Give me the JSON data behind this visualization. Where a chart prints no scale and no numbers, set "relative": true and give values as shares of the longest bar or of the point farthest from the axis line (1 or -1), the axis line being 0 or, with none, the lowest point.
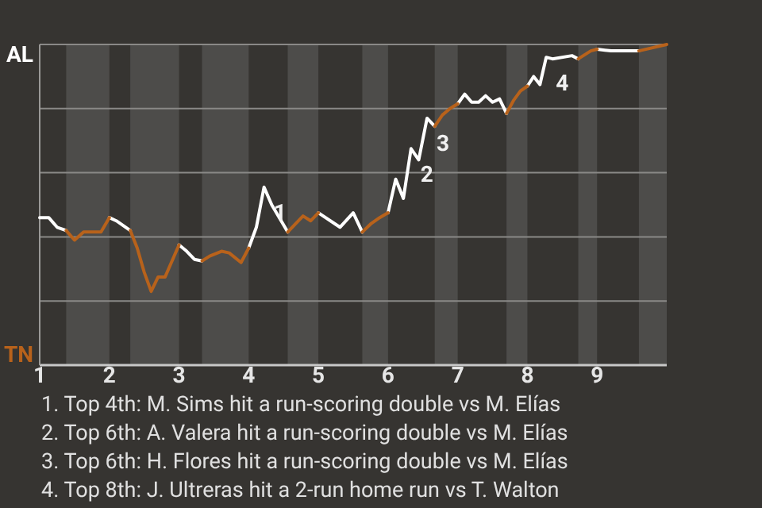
{
  "chart_data": {
    "type": "line",
    "relative": true,
    "x": [
      1,
      1.13,
      1.25,
      1.38,
      1.5,
      1.63,
      1.88,
      2,
      2.1,
      2.3,
      2.4,
      2.5,
      2.6,
      2.7,
      2.8,
      3,
      3.11,
      3.22,
      3.33,
      3.44,
      3.61,
      3.72,
      3.89,
      4,
      4.11,
      4.22,
      4.33,
      4.56,
      4.67,
      4.78,
      4.89,
      5,
      5.31,
      5.5,
      5.63,
      5.75,
      5.88,
      6,
      6.11,
      6.22,
      6.33,
      6.44,
      6.56,
      6.67,
      6.78,
      6.89,
      7,
      7.1,
      7.2,
      7.3,
      7.4,
      7.5,
      7.6,
      7.7,
      7.8,
      7.9,
      8,
      8.09,
      8.18,
      8.27,
      8.36,
      8.64,
      8.73,
      8.91,
      9,
      9.2,
      9.6,
      10
    ],
    "series": [
      {
        "name": "AL",
        "color": "#ffffff",
        "values": [
          0.46,
          0.46,
          0.43,
          0.42,
          null,
          null,
          null,
          0.46,
          0.45,
          0.42,
          null,
          null,
          null,
          null,
          null,
          0.375,
          0.355,
          0.33,
          0.325,
          null,
          null,
          null,
          null,
          0.365,
          0.43,
          0.555,
          0.5,
          0.415,
          null,
          null,
          null,
          0.475,
          0.43,
          0.475,
          0.415,
          null,
          null,
          0.475,
          0.58,
          0.52,
          0.675,
          0.64,
          0.77,
          0.745,
          null,
          null,
          0.815,
          0.845,
          0.82,
          0.82,
          0.84,
          0.82,
          0.83,
          0.785,
          null,
          null,
          0.87,
          0.9,
          0.875,
          0.96,
          0.955,
          0.965,
          0.955,
          null,
          0.985,
          0.98,
          0.98,
          null
        ]
      },
      {
        "name": "TN",
        "color": "#b8621b",
        "values": [
          null,
          null,
          null,
          0.42,
          0.39,
          0.415,
          0.415,
          0.46,
          null,
          0.42,
          0.365,
          0.29,
          0.23,
          0.275,
          0.275,
          0.375,
          null,
          null,
          0.325,
          0.34,
          0.355,
          0.35,
          0.32,
          0.365,
          null,
          null,
          null,
          0.415,
          0.44,
          0.465,
          0.45,
          0.475,
          null,
          null,
          0.415,
          0.44,
          0.46,
          0.475,
          null,
          null,
          null,
          null,
          null,
          0.745,
          0.78,
          0.8,
          0.815,
          null,
          null,
          null,
          null,
          null,
          null,
          0.785,
          0.825,
          0.855,
          0.87,
          null,
          null,
          null,
          null,
          null,
          0.955,
          0.98,
          0.985,
          null,
          0.98,
          1
        ]
      }
    ],
    "xlim": [
      1,
      10
    ],
    "xticks": [
      1,
      2,
      3,
      4,
      5,
      6,
      7,
      8,
      9
    ],
    "grid": "y",
    "marker": "none",
    "line_style": "solid",
    "bands": [
      {
        "axis": "x",
        "from": 1.38,
        "to": 2,
        "color": "#4d4c4a"
      },
      {
        "axis": "x",
        "from": 2.3,
        "to": 3,
        "color": "#4d4c4a"
      },
      {
        "axis": "x",
        "from": 3.33,
        "to": 4,
        "color": "#4d4c4a"
      },
      {
        "axis": "x",
        "from": 4.56,
        "to": 5,
        "color": "#4d4c4a"
      },
      {
        "axis": "x",
        "from": 5.63,
        "to": 6,
        "color": "#4d4c4a"
      },
      {
        "axis": "x",
        "from": 6.67,
        "to": 7,
        "color": "#4d4c4a"
      },
      {
        "axis": "x",
        "from": 7.7,
        "to": 8,
        "color": "#4d4c4a"
      },
      {
        "axis": "x",
        "from": 8.73,
        "to": 9,
        "color": "#4d4c4a"
      },
      {
        "axis": "x",
        "from": 9.6,
        "to": 10,
        "color": "#4d4c4a"
      }
    ],
    "annotations": [
      {
        "text": "1",
        "x": 4.22,
        "y": 0.555
      },
      {
        "text": "2",
        "x": 6.33,
        "y": 0.675
      },
      {
        "text": "3",
        "x": 6.56,
        "y": 0.77
      },
      {
        "text": "4",
        "x": 8.27,
        "y": 0.96
      },
      "1. Top 4th: M. Sims hit a run-scoring double vs M. Elías",
      "2. Top 6th: A. Valera hit a run-scoring double vs M. Elías",
      "3. Top 6th: H. Flores hit a run-scoring double vs M. Elías",
      "4. Top 8th: J. Ultreras hit a 2-run home run vs T. Walton"
    ]
  }
}
